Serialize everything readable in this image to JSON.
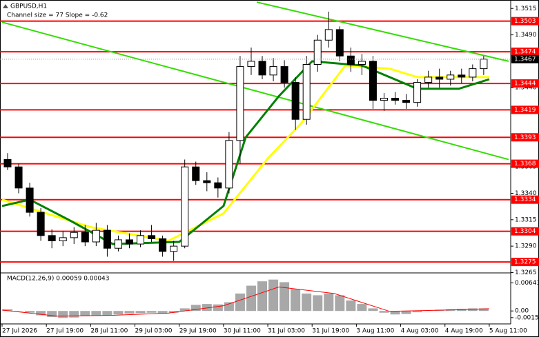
{
  "chart_data": {
    "type": "candlestick",
    "title": "GBPUSD,H1",
    "annotation": "Channel size = 77 Slope = -0.62",
    "xlim": [
      -0.75,
      183
    ],
    "xticks": [
      {
        "value": 0,
        "label": "27 Jul 2026"
      },
      {
        "value": 16,
        "label": "27 Jul 19:00"
      },
      {
        "value": 32,
        "label": "28 Jul 11:00"
      },
      {
        "value": 48,
        "label": "29 Jul 03:00"
      },
      {
        "value": 64,
        "label": "29 Jul 19:00"
      },
      {
        "value": 80,
        "label": "30 Jul 11:00"
      },
      {
        "value": 96,
        "label": "31 Jul 03:00"
      },
      {
        "value": 112,
        "label": "31 Jul 19:00"
      },
      {
        "value": 128,
        "label": "3 Aug 11:00"
      },
      {
        "value": 144,
        "label": "4 Aug 03:00"
      },
      {
        "value": 160,
        "label": "4 Aug 19:00"
      },
      {
        "value": 176,
        "label": "5 Aug 11:00"
      }
    ],
    "ylim": [
      1.3264,
      1.3523
    ],
    "yticks": [
      1.3515,
      {
        "value": 1.349,
        "label": "1.3490"
      },
      {
        "value": 1.344,
        "label": "1.3440"
      },
      1.3365,
      {
        "value": 1.334,
        "label": "1.3340"
      },
      1.3315,
      {
        "value": 1.329,
        "label": "1.3290"
      },
      1.3265
    ],
    "grid": false,
    "x": [
      0,
      4,
      8,
      12,
      16,
      20,
      24,
      28,
      32,
      36,
      40,
      44,
      48,
      52,
      56,
      60,
      64,
      68,
      72,
      76,
      80,
      84,
      88,
      92,
      96,
      100,
      104,
      108,
      112,
      116,
      120,
      124,
      128,
      132,
      136,
      140,
      144,
      148,
      152,
      156,
      160,
      164,
      168,
      172
    ],
    "open": [
      1.3372,
      1.3365,
      1.3345,
      1.3322,
      1.33,
      1.3295,
      1.3298,
      1.3303,
      1.3294,
      1.3305,
      1.3288,
      1.3296,
      1.3292,
      1.33,
      1.3297,
      1.3285,
      1.329,
      1.3365,
      1.3352,
      1.335,
      1.3345,
      1.339,
      1.346,
      1.3465,
      1.3452,
      1.346,
      1.3445,
      1.341,
      1.3462,
      1.3485,
      1.3495,
      1.347,
      1.3462,
      1.3465,
      1.3428,
      1.343,
      1.3428,
      1.3426,
      1.3445,
      1.345,
      1.3448,
      1.3452,
      1.345,
      1.3458
    ],
    "high": [
      1.3378,
      1.3368,
      1.335,
      1.3326,
      1.3306,
      1.3304,
      1.3308,
      1.331,
      1.3312,
      1.331,
      1.33,
      1.3302,
      1.3305,
      1.331,
      1.33,
      1.3295,
      1.3372,
      1.337,
      1.336,
      1.3355,
      1.3398,
      1.347,
      1.3478,
      1.347,
      1.3468,
      1.3466,
      1.345,
      1.347,
      1.349,
      1.3512,
      1.3498,
      1.3478,
      1.3472,
      1.347,
      1.3435,
      1.3436,
      1.3434,
      1.3448,
      1.3456,
      1.3458,
      1.3456,
      1.3458,
      1.3462,
      1.347
    ],
    "low": [
      1.3362,
      1.334,
      1.3318,
      1.3295,
      1.3288,
      1.329,
      1.3292,
      1.329,
      1.329,
      1.328,
      1.3285,
      1.3288,
      1.3289,
      1.3294,
      1.328,
      1.3276,
      1.3288,
      1.3348,
      1.3342,
      1.3336,
      1.334,
      1.3368,
      1.3452,
      1.3448,
      1.3446,
      1.344,
      1.34,
      1.3405,
      1.3455,
      1.3478,
      1.3465,
      1.3455,
      1.3452,
      1.342,
      1.3418,
      1.3424,
      1.342,
      1.3422,
      1.344,
      1.344,
      1.3442,
      1.3444,
      1.3446,
      1.3452
    ],
    "close": [
      1.3365,
      1.3345,
      1.3322,
      1.33,
      1.3295,
      1.3298,
      1.3303,
      1.3294,
      1.3305,
      1.3288,
      1.3296,
      1.3292,
      1.33,
      1.3297,
      1.3285,
      1.329,
      1.3365,
      1.3352,
      1.335,
      1.3345,
      1.339,
      1.346,
      1.3465,
      1.3452,
      1.346,
      1.3445,
      1.341,
      1.3462,
      1.3485,
      1.3495,
      1.347,
      1.3462,
      1.3465,
      1.3428,
      1.343,
      1.3428,
      1.3426,
      1.3445,
      1.345,
      1.3448,
      1.3452,
      1.345,
      1.3458,
      1.3467
    ],
    "up_color": "#ffffff",
    "down_color": "#000000",
    "overlays": [
      {
        "color": "#ffff00",
        "x": [
          0,
          32,
          60,
          80,
          96,
          108,
          124,
          140,
          150,
          176
        ],
        "values": [
          1.3334,
          1.3308,
          1.3295,
          1.3321,
          1.3373,
          1.3406,
          1.3461,
          1.3458,
          1.345,
          1.345
        ]
      },
      {
        "color": "#008000",
        "x": [
          0,
          10,
          24,
          40,
          64,
          80,
          88,
          100,
          112,
          130,
          150,
          165,
          176
        ],
        "values": [
          1.3328,
          1.3334,
          1.3315,
          1.3292,
          1.3294,
          1.3328,
          1.3393,
          1.3432,
          1.3465,
          1.3461,
          1.3439,
          1.3439,
          1.3448
        ]
      }
    ],
    "channel": {
      "color": "#33dd00",
      "lines": [
        {
          "x": [
            0,
            183
          ],
          "y": [
            1.3502,
            1.3372
          ]
        },
        {
          "x": [
            92,
            183
          ],
          "y": [
            1.3521,
            1.3465
          ]
        }
      ]
    },
    "levels": {
      "color": "#ff0000",
      "values": [
        1.3503,
        1.3474,
        1.3444,
        1.3419,
        1.3393,
        1.3368,
        1.3334,
        1.3304,
        1.3275
      ]
    },
    "last_price": 1.3467,
    "macd": {
      "label": "MACD(12,26,9) 0.00059 0.00043",
      "ylim": [
        -0.00297,
        0.00857
      ],
      "yticks": [
        0.00643,
        {
          "value": 0,
          "label": "0.00"
        },
        -0.00152
      ],
      "histogram": {
        "color": "#a8a8a8",
        "values": [
          0.0004,
          0.0,
          -0.0004,
          -0.001,
          -0.0014,
          -0.0016,
          -0.0015,
          -0.0012,
          -0.001,
          -0.001,
          -0.0008,
          -0.0006,
          -0.0005,
          -0.0004,
          -0.0005,
          -0.0004,
          0.0006,
          0.0014,
          0.0016,
          0.0015,
          0.002,
          0.004,
          0.0058,
          0.0068,
          0.0072,
          0.0066,
          0.005,
          0.004,
          0.0036,
          0.004,
          0.0036,
          0.0024,
          0.0016,
          0.0006,
          -0.0004,
          -0.0008,
          -0.0007,
          -0.0003,
          0.0001,
          0.0003,
          0.0004,
          0.0005,
          0.0006,
          0.0006
        ]
      },
      "signal": {
        "color": "#ff0000",
        "x": [
          0,
          20,
          40,
          60,
          80,
          100,
          120,
          140,
          160,
          176
        ],
        "values": [
          0.0002,
          -0.0012,
          -0.001,
          -0.0005,
          0.0012,
          0.0055,
          0.004,
          -0.0001,
          0.0002,
          0.0005
        ]
      }
    }
  }
}
